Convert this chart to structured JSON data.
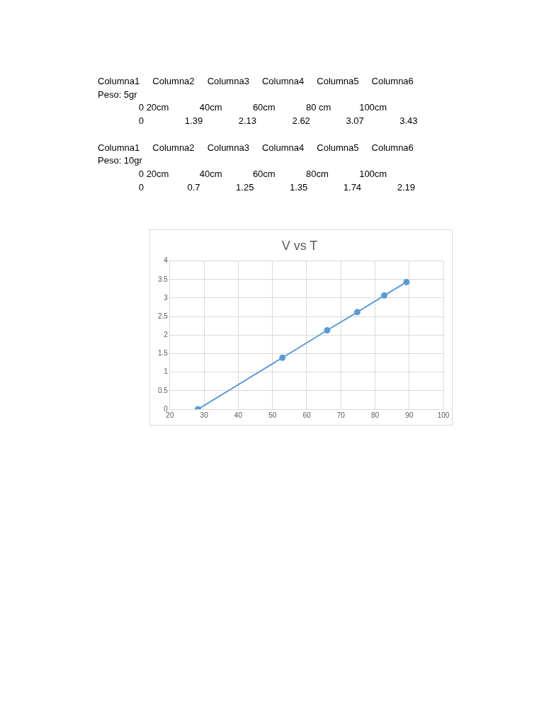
{
  "chart_data": {
    "type": "line",
    "title": "V vs T",
    "x": [
      28.2,
      52.9,
      66.0,
      74.8,
      82.7,
      89.2
    ],
    "series": [
      {
        "color": "#5b9bd5",
        "values": [
          0,
          1.39,
          2.13,
          2.62,
          3.07,
          3.43
        ]
      }
    ],
    "xlim": [
      20,
      100
    ],
    "xticks": [
      20,
      30,
      40,
      50,
      60,
      70,
      80,
      90,
      100
    ],
    "ylim": [
      0,
      4
    ],
    "yticks": [
      0,
      0.5,
      1,
      1.5,
      2,
      2.5,
      3,
      3.5,
      4
    ],
    "grid": true,
    "legend": false,
    "marker": "circle",
    "line_style": "solid",
    "annotations": [
      "Columna1     Columna2     Columna3     Columna4     Columna5     Columna6",
      "Peso: 5gr",
      "                0 20cm            40cm            60cm            80 cm           100cm",
      "                0                1.39              2.13              2.62              3.07              3.43",
      "Columna1     Columna2     Columna3     Columna4     Columna5     Columna6",
      "Peso: 10gr",
      "                0 20cm            40cm            60cm            80cm            100cm",
      "                0                 0.7              1.25              1.35              1.74              2.19"
    ]
  }
}
